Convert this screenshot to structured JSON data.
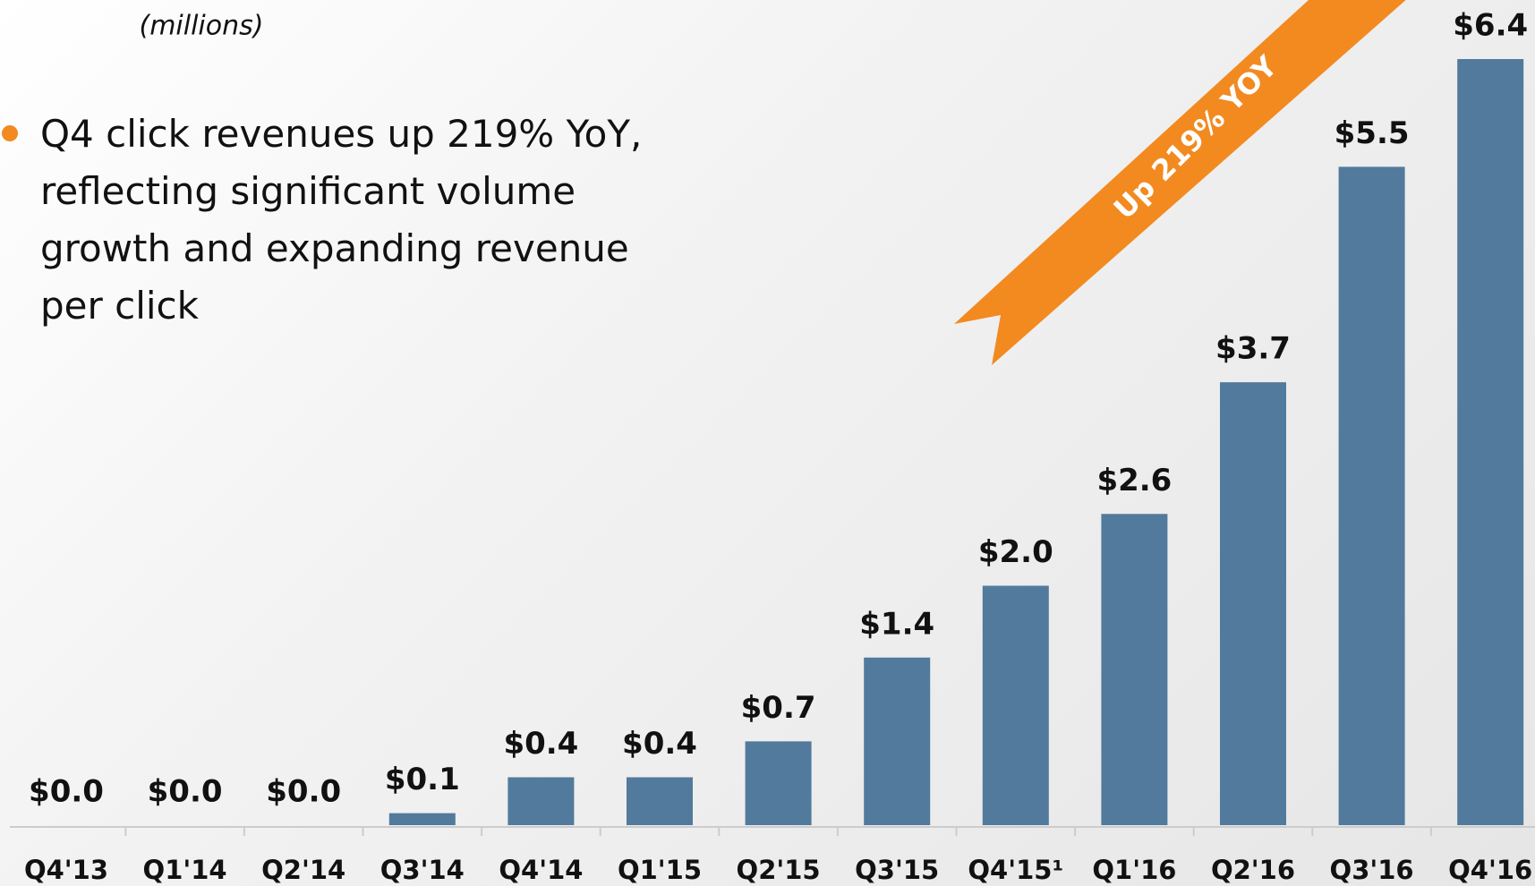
{
  "chart_data": {
    "type": "bar",
    "subtitle": "(millions)",
    "bullet": "Q4 click revenues up 219% YoY, reflecting significant volume growth and expanding revenue per click",
    "annotation": "Up 219% YOY",
    "categories": [
      "Q4'13",
      "Q1'14",
      "Q2'14",
      "Q3'14",
      "Q4'14",
      "Q1'15",
      "Q2'15",
      "Q3'15",
      "Q4'15¹",
      "Q1'16",
      "Q2'16",
      "Q3'16",
      "Q4'16"
    ],
    "values": [
      0.0,
      0.0,
      0.0,
      0.1,
      0.4,
      0.4,
      0.7,
      1.4,
      2.0,
      2.6,
      3.7,
      5.5,
      6.4
    ],
    "value_labels": [
      "$0.0",
      "$0.0",
      "$0.0",
      "$0.1",
      "$0.4",
      "$0.4",
      "$0.7",
      "$1.4",
      "$2.0",
      "$2.6",
      "$3.7",
      "$5.5",
      "$6.4"
    ],
    "color": "#527a9c"
  }
}
